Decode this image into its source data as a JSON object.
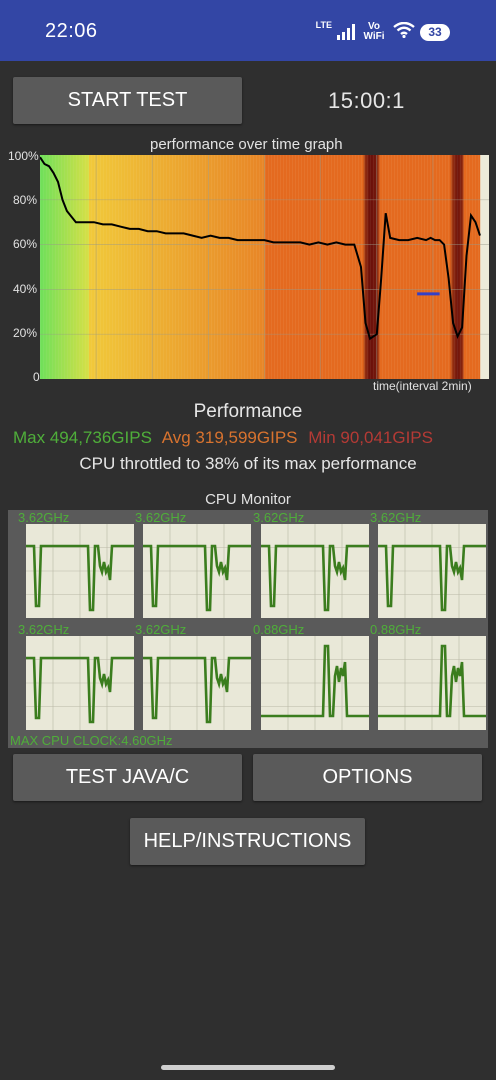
{
  "status_bar": {
    "time": "22:06",
    "network": "LTE",
    "wifi_calling": "Vo WiFi",
    "battery": "33",
    "background_color": "#3346a5",
    "icons": [
      "signal-bars-icon",
      "wifi-icon",
      "battery-icon"
    ]
  },
  "controls": {
    "start_test_label": "START TEST",
    "timer": "15:00:1",
    "test_java_c_label": "TEST JAVA/C",
    "options_label": "OPTIONS",
    "help_label": "HELP/INSTRUCTIONS"
  },
  "graph": {
    "title": "performance over time graph",
    "x_label": "time(interval 2min)",
    "y_ticks": [
      "100%",
      "80%",
      "60%",
      "40%",
      "20%",
      "0"
    ]
  },
  "chart_data": {
    "type": "line",
    "title": "performance over time graph",
    "xlabel": "time(interval 2min)",
    "ylabel": "",
    "ylim": [
      0,
      100
    ],
    "grid": true,
    "x": [
      0,
      1,
      2,
      3,
      4,
      5,
      6,
      8,
      10,
      12,
      14,
      16,
      18,
      20,
      22,
      24,
      26,
      28,
      30,
      32,
      34,
      36,
      38,
      40,
      42,
      44,
      46,
      48,
      50,
      52,
      54,
      56,
      58,
      60,
      62,
      64,
      66,
      68,
      70,
      71.5,
      72.5,
      73.5,
      75,
      76,
      77,
      78,
      80,
      82,
      84,
      86,
      87,
      88,
      89,
      90,
      91,
      92,
      93,
      94,
      95,
      96,
      97,
      98
    ],
    "values": [
      99,
      96,
      95,
      92,
      88,
      80,
      75,
      70,
      70,
      70,
      69,
      69,
      68,
      67,
      67,
      66,
      66,
      65,
      65,
      65,
      64,
      63,
      64,
      63,
      63,
      62,
      62,
      62,
      62,
      61,
      61,
      61,
      61,
      60,
      61,
      60,
      61,
      60,
      60,
      50,
      25,
      18,
      20,
      45,
      74,
      63,
      62,
      62,
      63,
      62,
      63,
      62,
      62,
      60,
      45,
      25,
      19,
      23,
      55,
      73,
      70,
      64
    ],
    "reference_line": {
      "color": "#3340c8",
      "y": 38,
      "x_start": 84,
      "x_end": 89
    },
    "colors": {
      "high": "#6ee05a",
      "mid": "#f1c93a",
      "low": "#e46a1f",
      "min": "#6a0f0a",
      "line": "#000000"
    }
  },
  "performance": {
    "title": "Performance",
    "max": "Max 494,736GIPS",
    "avg": "Avg 319,599GIPS",
    "min": "Min 90,041GIPS",
    "max_color": "#4fae3a",
    "avg_color": "#d8732f",
    "min_color": "#b43a35",
    "throttle_text": "CPU throttled to 38% of its max performance"
  },
  "cpu_monitor": {
    "title": "CPU Monitor",
    "line_color": "#3b7d1e",
    "cores": [
      {
        "freq": "3.62GHz",
        "pattern": "high"
      },
      {
        "freq": "3.62GHz",
        "pattern": "high"
      },
      {
        "freq": "3.62GHz",
        "pattern": "high"
      },
      {
        "freq": "3.62GHz",
        "pattern": "high"
      },
      {
        "freq": "3.62GHz",
        "pattern": "high"
      },
      {
        "freq": "3.62GHz",
        "pattern": "high"
      },
      {
        "freq": "0.88GHz",
        "pattern": "low"
      },
      {
        "freq": "0.88GHz",
        "pattern": "low"
      }
    ],
    "max_clock": "MAX CPU CLOCK:4.60GHz"
  }
}
